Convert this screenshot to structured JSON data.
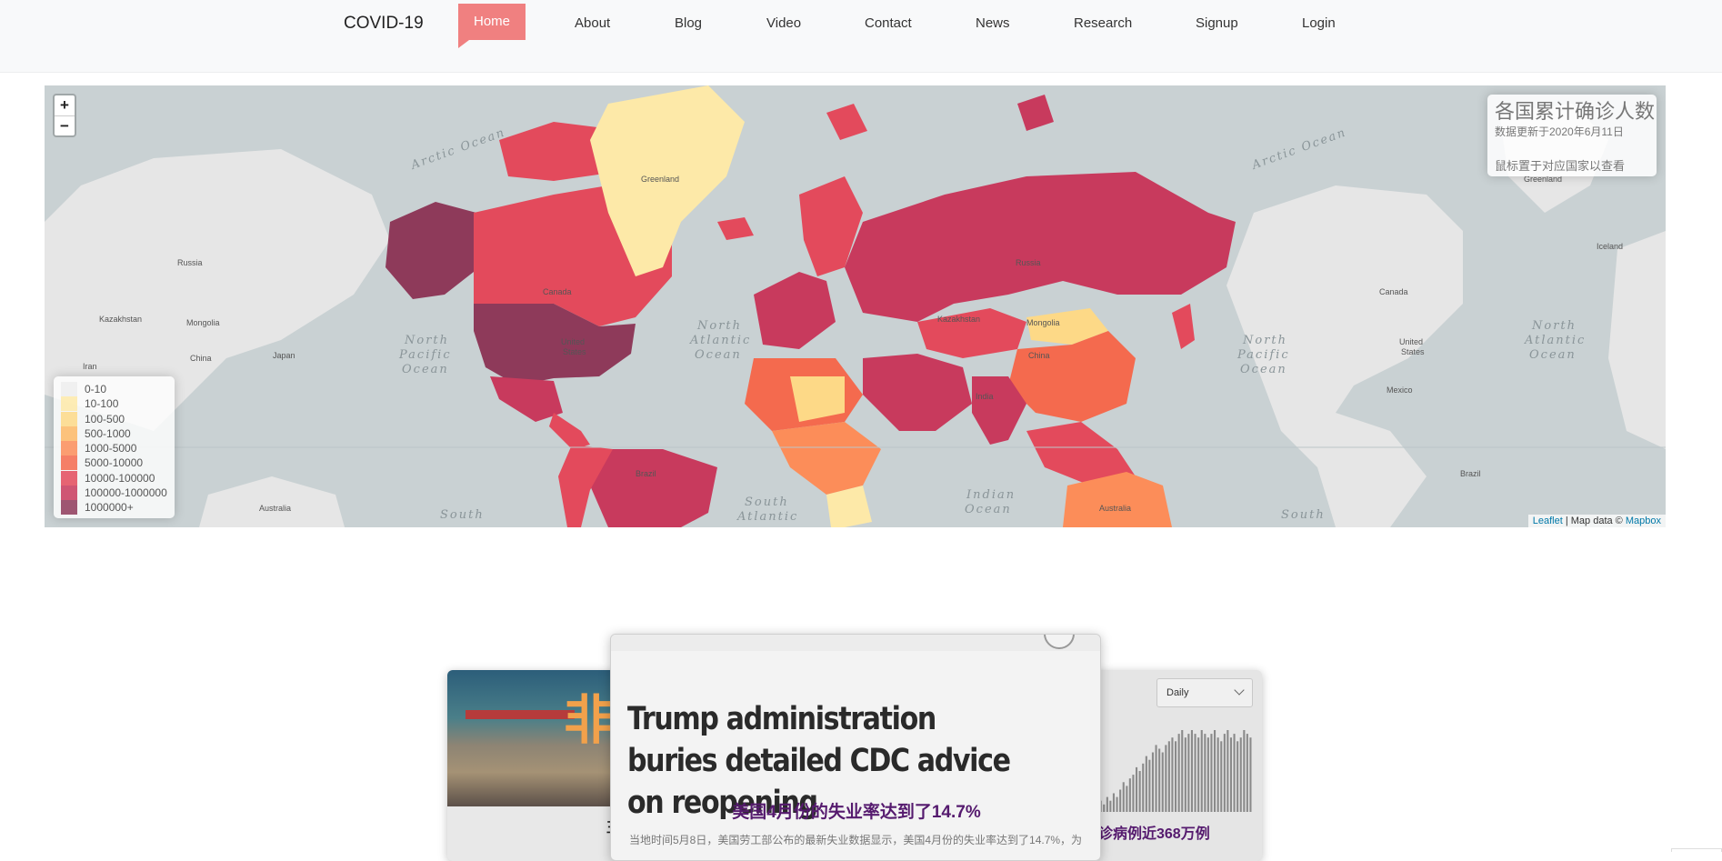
{
  "nav": {
    "brand": "COVID-19",
    "items": [
      {
        "key": "home",
        "label": "Home",
        "active": true
      },
      {
        "key": "about",
        "label": "About"
      },
      {
        "key": "blog",
        "label": "Blog"
      },
      {
        "key": "video",
        "label": "Video"
      },
      {
        "key": "contact",
        "label": "Contact"
      },
      {
        "key": "news",
        "label": "News"
      },
      {
        "key": "research",
        "label": "Research"
      },
      {
        "key": "signup",
        "label": "Signup"
      },
      {
        "key": "login",
        "label": "Login"
      }
    ],
    "active_color": "#f08080"
  },
  "map": {
    "zoom_in": "+",
    "zoom_out": "−",
    "info": {
      "title": "各国累计确诊人数",
      "updated": "数据更新于2020年6月11日",
      "hint": "鼠标置于对应国家以查看"
    },
    "legend": [
      {
        "label": "0-10",
        "color": "#ededed"
      },
      {
        "label": "10-100",
        "color": "#fde9a8"
      },
      {
        "label": "100-500",
        "color": "#fdd987"
      },
      {
        "label": "500-1000",
        "color": "#fdb866"
      },
      {
        "label": "1000-5000",
        "color": "#fc8d59"
      },
      {
        "label": "5000-10000",
        "color": "#f46a4e"
      },
      {
        "label": "10000-100000",
        "color": "#e34a5c"
      },
      {
        "label": "100000-1000000",
        "color": "#c83a5d"
      },
      {
        "label": "1000000+",
        "color": "#8e3a5a"
      }
    ],
    "attribution": {
      "leaflet": "Leaflet",
      "mid": " | Map data © ",
      "provider": "Mapbox"
    },
    "labels": {
      "arctic_ocean": "Arctic Ocean",
      "north_pacific": [
        "North",
        "Pacific",
        "Ocean"
      ],
      "north_atlantic": [
        "North",
        "Atlantic",
        "Ocean"
      ],
      "south_atlantic": [
        "South",
        "Atlantic"
      ],
      "indian_ocean": [
        "Indian",
        "Ocean"
      ],
      "south": "South",
      "greenland": "Greenland",
      "russia": "Russia",
      "canada": "Canada",
      "united_states": [
        "United",
        "States"
      ],
      "china": "China",
      "india": "India",
      "brazil": "Brazil",
      "australia": "Australia",
      "kazakhstan": "Kazakhstan",
      "mongolia": "Mongolia",
      "iran": "Iran",
      "japan": "Japan",
      "iceland": "Iceland",
      "mexico": "Mexico"
    }
  },
  "cards": {
    "left_caption": "非",
    "left_caption_partial": "王",
    "right_select": "Daily",
    "right_caption": "诊病例近368万例",
    "headline": "Trump administration buries detailed CDC advice on reopening",
    "subhead": "美国4月份的失业率达到了14.7%",
    "body": "当地时间5月8日，美国劳工部公布的最新失业数据显示，美国4月份的失业率达到了14.7%，为",
    "bars": [
      2,
      3,
      2,
      4,
      3,
      5,
      4,
      6,
      8,
      7,
      9,
      10,
      12,
      11,
      13,
      15,
      14,
      16,
      18,
      17,
      16,
      18,
      19,
      20,
      19,
      21,
      22,
      20,
      21,
      22,
      21,
      20,
      22,
      21,
      20,
      21,
      22,
      20,
      19,
      21,
      22,
      20,
      21,
      19,
      20,
      22,
      21,
      20
    ]
  }
}
